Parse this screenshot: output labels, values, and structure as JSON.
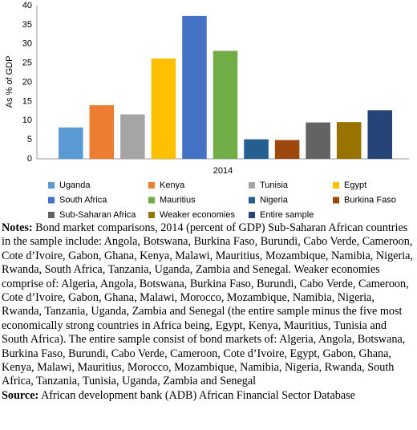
{
  "chart_data": {
    "type": "bar",
    "y_label": "As % of GDP",
    "categories": [
      "2014"
    ],
    "series": [
      {
        "name": "Uganda",
        "color": "#5b9bd5",
        "values": [
          8.2
        ]
      },
      {
        "name": "Kenya",
        "color": "#ed7d31",
        "values": [
          14
        ]
      },
      {
        "name": "Tunisia",
        "color": "#a5a5a5",
        "values": [
          11.6
        ]
      },
      {
        "name": "Egypt",
        "color": "#ffc000",
        "values": [
          26.2
        ]
      },
      {
        "name": "South Africa",
        "color": "#4472c4",
        "values": [
          37.3
        ]
      },
      {
        "name": "Mauritius",
        "color": "#70ad47",
        "values": [
          28.2
        ]
      },
      {
        "name": "Nigeria",
        "color": "#255e91",
        "values": [
          5.1
        ]
      },
      {
        "name": "Burkina Faso",
        "color": "#9e480e",
        "values": [
          4.9
        ]
      },
      {
        "name": "Sub-Saharan Africa",
        "color": "#636363",
        "values": [
          9.5
        ]
      },
      {
        "name": "Weaker economies",
        "color": "#997300",
        "values": [
          9.6
        ]
      },
      {
        "name": "Entire sample",
        "color": "#264478",
        "values": [
          12.7
        ]
      }
    ],
    "ylim": [
      0,
      40
    ],
    "yticks": [
      0,
      5,
      10,
      15,
      20,
      25,
      30,
      35,
      40
    ],
    "grid": false,
    "legend": "bottom"
  },
  "notes": {
    "label": "Notes:",
    "text": "Bond market comparisons, 2014 (percent of GDP) Sub-Saharan African countries in the sample include: Angola, Botswana, Burkina Faso, Burundi, Cabo Verde, Cameroon, Cote d’Ivoire, Gabon, Ghana, Kenya, Malawi, Mauritius, Mozambique, Namibia, Nigeria, Rwanda, South Africa, Tanzania, Uganda, Zambia and Senegal. Weaker economies comprise of: Algeria, Angola, Botswana, Burkina Faso, Burundi, Cabo Verde, Cameroon, Cote d’Ivoire, Gabon, Ghana, Malawi, Morocco, Mozambique, Namibia, Nigeria, Rwanda, Tanzania, Uganda, Zambia and Senegal (the entire sample minus the five most economically strong countries in Africa being, Egypt, Kenya, Mauritius, Tunisia and South Africa). The entire sample consist of bond markets of: Algeria, Angola, Botswana, Burkina Faso, Burundi, Cabo Verde, Cameroon, Cote d’Ivoire, Egypt, Gabon, Ghana, Kenya, Malawi, Mauritius, Morocco, Mozambique, Namibia, Nigeria, Rwanda, South Africa, Tanzania, Tunisia, Uganda, Zambia and Senegal"
  },
  "source": {
    "label": "Source:",
    "text": "African development bank (ADB) African Financial Sector Database"
  }
}
